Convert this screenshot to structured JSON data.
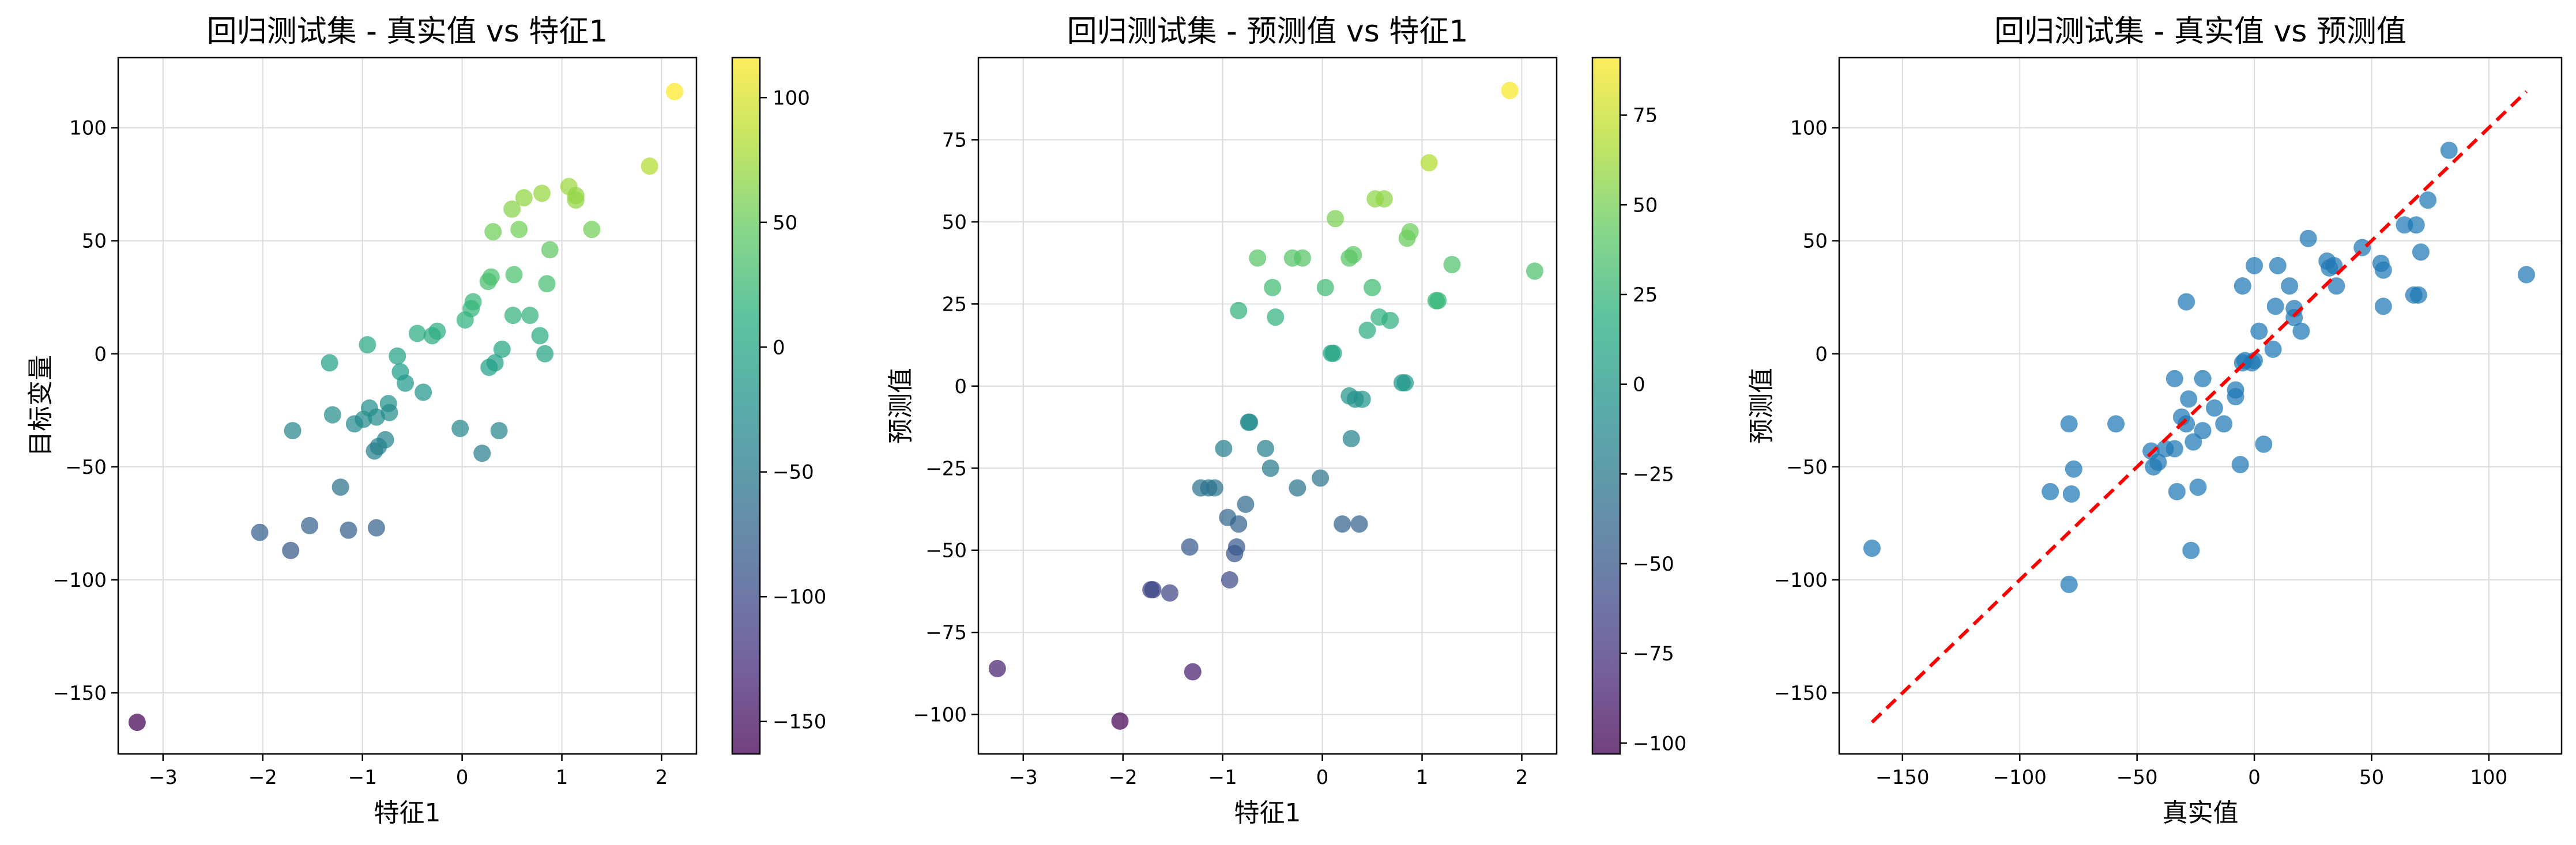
{
  "chart_data": [
    {
      "type": "scatter",
      "title": "回归测试集 - 真实值 vs 特征1",
      "xlabel": "特征1",
      "ylabel": "目标变量",
      "xlim": [
        -3.45,
        2.35
      ],
      "ylim": [
        -177,
        131
      ],
      "xticks": [
        -3,
        -2,
        -1,
        0,
        1,
        2
      ],
      "yticks": [
        -150,
        -100,
        -50,
        0,
        50,
        100
      ],
      "grid": true,
      "colormap": "viridis",
      "colorbar": {
        "range": [
          -163,
          116
        ],
        "ticks": [
          -150,
          -100,
          -50,
          0,
          50,
          100
        ]
      },
      "points": [
        [
          -3.26,
          -163
        ],
        [
          -2.03,
          -79
        ],
        [
          -1.72,
          -87
        ],
        [
          -1.53,
          -76
        ],
        [
          -1.14,
          -78
        ],
        [
          -0.86,
          -77
        ],
        [
          -1.22,
          -59
        ],
        [
          -1.7,
          -34
        ],
        [
          -1.3,
          -27
        ],
        [
          -1.08,
          -31
        ],
        [
          -0.99,
          -29
        ],
        [
          -0.93,
          -24
        ],
        [
          -0.88,
          -43
        ],
        [
          -0.84,
          -41
        ],
        [
          -0.77,
          -38
        ],
        [
          -0.74,
          -22
        ],
        [
          -0.62,
          -8
        ],
        [
          -0.57,
          -13
        ],
        [
          -0.65,
          -1
        ],
        [
          -0.86,
          -28
        ],
        [
          -0.73,
          -26
        ],
        [
          -0.39,
          -17
        ],
        [
          -0.95,
          4
        ],
        [
          -1.33,
          -4
        ],
        [
          -0.45,
          9
        ],
        [
          -0.3,
          8
        ],
        [
          -0.25,
          10
        ],
        [
          -0.02,
          -33
        ],
        [
          0.2,
          -44
        ],
        [
          0.37,
          -34
        ],
        [
          0.27,
          -6
        ],
        [
          0.33,
          -4
        ],
        [
          0.4,
          2
        ],
        [
          0.03,
          15
        ],
        [
          0.09,
          20
        ],
        [
          0.11,
          23
        ],
        [
          0.26,
          32
        ],
        [
          0.29,
          34
        ],
        [
          0.51,
          17
        ],
        [
          0.52,
          35
        ],
        [
          0.68,
          17
        ],
        [
          0.78,
          8
        ],
        [
          0.83,
          0
        ],
        [
          0.85,
          31
        ],
        [
          0.88,
          46
        ],
        [
          0.31,
          54
        ],
        [
          0.5,
          64
        ],
        [
          0.57,
          55
        ],
        [
          0.62,
          69
        ],
        [
          0.8,
          71
        ],
        [
          1.07,
          74
        ],
        [
          1.14,
          68
        ],
        [
          1.14,
          70
        ],
        [
          1.3,
          55
        ],
        [
          1.88,
          83
        ],
        [
          2.13,
          116
        ]
      ]
    },
    {
      "type": "scatter",
      "title": "回归测试集 - 预测值 vs 特征1",
      "xlabel": "特征1",
      "ylabel": "预测值",
      "xlim": [
        -3.45,
        2.35
      ],
      "ylim": [
        -112,
        100
      ],
      "xticks": [
        -3,
        -2,
        -1,
        0,
        1,
        2
      ],
      "yticks": [
        -100,
        -75,
        -50,
        -25,
        0,
        25,
        50,
        75
      ],
      "grid": true,
      "colormap": "viridis",
      "colorbar": {
        "range": [
          -103,
          91
        ],
        "ticks": [
          -100,
          -75,
          -50,
          -25,
          0,
          25,
          50,
          75
        ]
      },
      "points": [
        [
          -3.26,
          -86
        ],
        [
          -2.03,
          -102
        ],
        [
          -1.72,
          -62
        ],
        [
          -1.7,
          -62
        ],
        [
          -1.53,
          -63
        ],
        [
          -1.3,
          -87
        ],
        [
          -1.33,
          -49
        ],
        [
          -1.22,
          -31
        ],
        [
          -1.14,
          -31
        ],
        [
          -1.08,
          -31
        ],
        [
          -0.99,
          -19
        ],
        [
          -0.95,
          -40
        ],
        [
          -0.93,
          -59
        ],
        [
          -0.88,
          -51
        ],
        [
          -0.86,
          -49
        ],
        [
          -0.84,
          -42
        ],
        [
          -0.77,
          -36
        ],
        [
          -0.74,
          -11
        ],
        [
          -0.73,
          -11
        ],
        [
          -0.57,
          -19
        ],
        [
          -0.52,
          -25
        ],
        [
          -0.25,
          -31
        ],
        [
          -0.02,
          -28
        ],
        [
          0.2,
          -42
        ],
        [
          0.37,
          -42
        ],
        [
          0.27,
          -3
        ],
        [
          0.33,
          -4
        ],
        [
          0.4,
          -4
        ],
        [
          0.29,
          -16
        ],
        [
          -0.84,
          23
        ],
        [
          -0.65,
          39
        ],
        [
          -0.5,
          30
        ],
        [
          -0.47,
          21
        ],
        [
          -0.3,
          39
        ],
        [
          -0.2,
          39
        ],
        [
          0.03,
          30
        ],
        [
          0.09,
          10
        ],
        [
          0.11,
          10
        ],
        [
          0.13,
          51
        ],
        [
          0.27,
          39
        ],
        [
          0.31,
          40
        ],
        [
          0.45,
          17
        ],
        [
          0.5,
          30
        ],
        [
          0.53,
          57
        ],
        [
          0.57,
          21
        ],
        [
          0.62,
          57
        ],
        [
          0.68,
          20
        ],
        [
          0.8,
          1
        ],
        [
          0.83,
          1
        ],
        [
          0.85,
          45
        ],
        [
          0.88,
          47
        ],
        [
          1.07,
          68
        ],
        [
          1.14,
          26
        ],
        [
          1.16,
          26
        ],
        [
          1.3,
          37
        ],
        [
          1.88,
          90
        ],
        [
          2.13,
          35
        ]
      ]
    },
    {
      "type": "scatter",
      "title": "回归测试集 - 真实值 vs 预测值",
      "xlabel": "真实值",
      "ylabel": "预测值",
      "xlim": [
        -177,
        131
      ],
      "ylim": [
        -177,
        131
      ],
      "xticks": [
        -150,
        -100,
        -50,
        0,
        50,
        100
      ],
      "yticks": [
        -150,
        -100,
        -50,
        0,
        50,
        100
      ],
      "grid": true,
      "color": "#1f77b4",
      "reference_line": {
        "from": [
          -163,
          -163
        ],
        "to": [
          116,
          116
        ],
        "color": "#ff0000",
        "style": "dashed"
      },
      "points": [
        [
          -163,
          -86
        ],
        [
          -87,
          -61
        ],
        [
          -79,
          -102
        ],
        [
          -79,
          -31
        ],
        [
          -78,
          -62
        ],
        [
          -77,
          -51
        ],
        [
          -59,
          -31
        ],
        [
          -44,
          -43
        ],
        [
          -43,
          -50
        ],
        [
          -41,
          -48
        ],
        [
          -38,
          -42
        ],
        [
          -34,
          -11
        ],
        [
          -34,
          -42
        ],
        [
          -33,
          -61
        ],
        [
          -31,
          -28
        ],
        [
          -29,
          -31
        ],
        [
          -28,
          -20
        ],
        [
          -27,
          -87
        ],
        [
          -26,
          -39
        ],
        [
          -24,
          -59
        ],
        [
          -22,
          -34
        ],
        [
          -17,
          -24
        ],
        [
          -13,
          -31
        ],
        [
          -8,
          -19
        ],
        [
          -8,
          -16
        ],
        [
          -6,
          -49
        ],
        [
          -5,
          -4
        ],
        [
          -4,
          -3
        ],
        [
          -1,
          -4
        ],
        [
          0,
          -3
        ],
        [
          2,
          10
        ],
        [
          4,
          -40
        ],
        [
          8,
          2
        ],
        [
          9,
          21
        ],
        [
          10,
          39
        ],
        [
          15,
          30
        ],
        [
          17,
          20
        ],
        [
          17,
          16
        ],
        [
          20,
          10
        ],
        [
          23,
          51
        ],
        [
          31,
          41
        ],
        [
          32,
          38
        ],
        [
          34,
          39
        ],
        [
          35,
          30
        ],
        [
          46,
          47
        ],
        [
          54,
          40
        ],
        [
          55,
          21
        ],
        [
          55,
          37
        ],
        [
          64,
          57
        ],
        [
          68,
          26
        ],
        [
          69,
          57
        ],
        [
          70,
          26
        ],
        [
          71,
          45
        ],
        [
          74,
          68
        ],
        [
          83,
          90
        ],
        [
          116,
          35
        ],
        [
          -29,
          23
        ],
        [
          -5,
          30
        ],
        [
          0,
          39
        ],
        [
          -22,
          -11
        ]
      ]
    }
  ]
}
